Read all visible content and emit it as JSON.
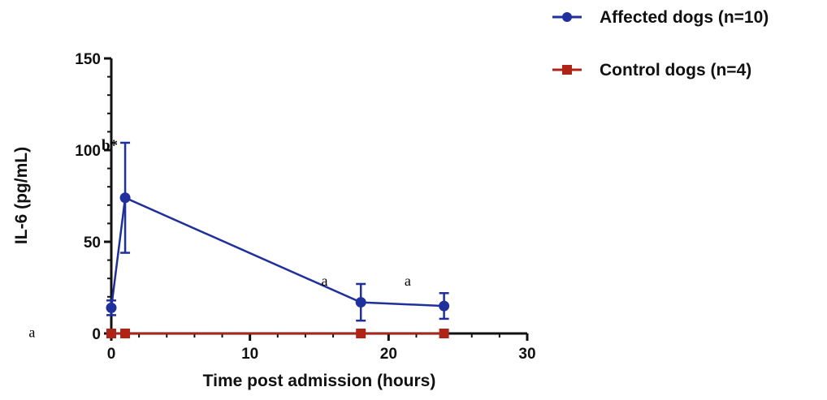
{
  "chart_data": {
    "type": "line",
    "title": "",
    "xlabel": "Time post admission (hours)",
    "ylabel": "IL-6 (pg/mL)",
    "xlim": [
      0,
      30
    ],
    "ylim": [
      0,
      150
    ],
    "x_ticks": [
      0,
      10,
      20,
      30
    ],
    "y_ticks": [
      0,
      50,
      100,
      150
    ],
    "x_tick_labels": [
      "0",
      "10",
      "20",
      "30"
    ],
    "y_tick_labels": [
      "0",
      "50",
      "100",
      "150"
    ],
    "grid": false,
    "legend_position": "top-right",
    "series": [
      {
        "name": "Affected dogs (n=10)",
        "color": "#1f2f9c",
        "marker": "circle",
        "x": [
          0,
          1,
          18,
          24
        ],
        "y": [
          14,
          74,
          17,
          15
        ],
        "error": [
          4,
          30,
          10,
          7
        ]
      },
      {
        "name": "Control dogs (n=4)",
        "color": "#b02418",
        "marker": "square",
        "x": [
          0,
          1,
          18,
          24
        ],
        "y": [
          0,
          0,
          0,
          0
        ],
        "error": [
          0,
          0,
          0,
          0
        ]
      }
    ],
    "annotations": [
      {
        "text": "b*",
        "x": 0,
        "y": 100,
        "bold": true
      },
      {
        "text": "a",
        "x": 15.5,
        "y": 26,
        "bold": false
      },
      {
        "text": "a",
        "x": 21.5,
        "y": 26,
        "bold": false
      },
      {
        "text": "a",
        "x": -5.6,
        "y": -2,
        "bold": false
      }
    ]
  }
}
